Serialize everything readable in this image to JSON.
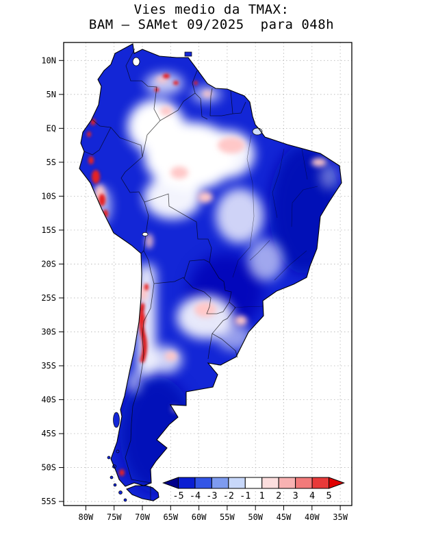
{
  "title": {
    "line1": "Vies medio da TMAX:",
    "line2": "BAM – SAMet 09/2025  para 048h"
  },
  "axes": {
    "lat_labels": [
      "10N",
      "5N",
      "EQ",
      "5S",
      "10S",
      "15S",
      "20S",
      "25S",
      "30S",
      "35S",
      "40S",
      "45S",
      "50S",
      "55S"
    ],
    "lon_labels": [
      "80W",
      "75W",
      "70W",
      "65W",
      "60W",
      "55W",
      "50W",
      "45W",
      "40W",
      "35W"
    ]
  },
  "colorbar": {
    "tick_labels": [
      "-5",
      "-4",
      "-3",
      "-2",
      "-1",
      "1",
      "2",
      "3",
      "4",
      "5"
    ],
    "segment_colors": [
      "#0a1ed2",
      "#3355e6",
      "#7e9bf0",
      "#c8d8fa",
      "#ffffff",
      "#fcdede",
      "#f8b2b2",
      "#f27a7a",
      "#e83a3a"
    ],
    "arrow_left_color": "#00008b",
    "arrow_right_color": "#e00000"
  },
  "map": {
    "colors": {
      "land_base": "#1326d6",
      "shade_dark": "#0008b4",
      "shade_white": "#ffffff",
      "shade_pink": "#ffc8c8",
      "shade_red": "#e62020",
      "shade_red_core": "#c80000",
      "shade_pale": "#cfdcfa"
    }
  },
  "chart_data": {
    "type": "heatmap",
    "title": "Vies medio da TMAX: BAM – SAMet 09/2025 para 048h",
    "region": "South America",
    "x_tick_labels": [
      "80W",
      "75W",
      "70W",
      "65W",
      "60W",
      "55W",
      "50W",
      "45W",
      "40W",
      "35W"
    ],
    "y_tick_labels": [
      "10N",
      "5N",
      "EQ",
      "5S",
      "10S",
      "15S",
      "20S",
      "25S",
      "30S",
      "35S",
      "40S",
      "45S",
      "50S",
      "55S"
    ],
    "colorbar_levels": [
      -5,
      -4,
      -3,
      -2,
      -1,
      1,
      2,
      3,
      4,
      5
    ],
    "colorbar_colors": [
      "#00008b",
      "#0a1ed2",
      "#3355e6",
      "#7e9bf0",
      "#c8d8fa",
      "#ffffff",
      "#fcdede",
      "#f8b2b2",
      "#f27a7a",
      "#e83a3a",
      "#e00000"
    ],
    "legend_position": "bottom, inside plot frame",
    "grid": "dotted",
    "notable_features": [
      "Predominantly strong negative bias (blue, -5 to -3) over most of the continent, ocean unshaded (white)",
      "Near-zero bias (white) over the western/central Amazon, eastern Colombia and interior Venezuela",
      "Near-zero to weak positive bias (white/pink) over the Chaco of northern Argentina and along the Andes band 22S-35S",
      "Strong positive bias (red, > +4) streak along the central Chile/Argentina Andes near 26S-34S",
      "Positive bias spots (red) along the Peru and Ecuador coast near EQ-12S and small red spots in Venezuela and Tierra del Fuego",
      "Weak positive bias patches over the lower Amazon and the northeast Brazil coast"
    ]
  }
}
